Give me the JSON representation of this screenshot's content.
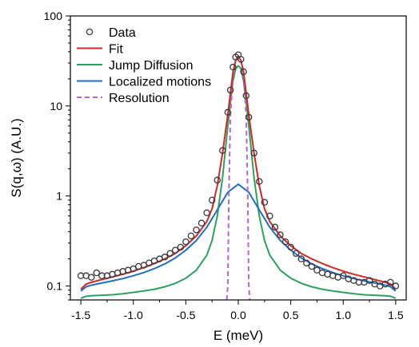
{
  "chart_data": {
    "type": "scatter",
    "xlabel": "E (meV)",
    "ylabel": "S(q,ω) (A.U.)",
    "xlim": [
      -1.6,
      1.6
    ],
    "ylim": [
      0.07,
      100
    ],
    "yscale": "log",
    "x_ticks": [
      -1.5,
      -1.0,
      -0.5,
      0.0,
      0.5,
      1.0,
      1.5
    ],
    "x_tick_labels": [
      "-1.5",
      "-1.0",
      "-0.5",
      "0.0",
      "0.5",
      "1.0",
      "1.5"
    ],
    "y_ticks": [
      0.1,
      1,
      10,
      100
    ],
    "y_tick_labels": [
      "0.1",
      "1",
      "10",
      "100"
    ],
    "grid": false,
    "legend_position": "top-left",
    "series": [
      {
        "name": "Data",
        "style": "open-circle",
        "color": "#3a3a3a",
        "x": [
          -1.5,
          -1.45,
          -1.4,
          -1.35,
          -1.3,
          -1.25,
          -1.2,
          -1.15,
          -1.1,
          -1.05,
          -1.0,
          -0.95,
          -0.9,
          -0.85,
          -0.8,
          -0.75,
          -0.7,
          -0.65,
          -0.6,
          -0.55,
          -0.5,
          -0.45,
          -0.4,
          -0.35,
          -0.3,
          -0.25,
          -0.2,
          -0.15,
          -0.1,
          -0.075,
          -0.05,
          -0.025,
          0.0,
          0.025,
          0.05,
          0.075,
          0.1,
          0.15,
          0.2,
          0.25,
          0.3,
          0.35,
          0.4,
          0.45,
          0.5,
          0.55,
          0.6,
          0.65,
          0.7,
          0.75,
          0.8,
          0.85,
          0.9,
          0.95,
          1.0,
          1.05,
          1.1,
          1.15,
          1.2,
          1.25,
          1.3,
          1.35,
          1.4,
          1.45,
          1.5
        ],
        "y": [
          0.13,
          0.13,
          0.125,
          0.14,
          0.13,
          0.13,
          0.135,
          0.14,
          0.145,
          0.15,
          0.155,
          0.165,
          0.17,
          0.18,
          0.19,
          0.2,
          0.21,
          0.23,
          0.25,
          0.27,
          0.31,
          0.36,
          0.42,
          0.5,
          0.65,
          0.9,
          1.5,
          3.2,
          8.5,
          15,
          27,
          35,
          37,
          33,
          24,
          13,
          7.5,
          3.0,
          1.45,
          0.85,
          0.6,
          0.45,
          0.37,
          0.31,
          0.27,
          0.23,
          0.2,
          0.18,
          0.165,
          0.15,
          0.14,
          0.135,
          0.13,
          0.125,
          0.13,
          0.12,
          0.115,
          0.11,
          0.11,
          0.115,
          0.105,
          0.1,
          0.105,
          0.11,
          0.1
        ]
      },
      {
        "name": "Fit",
        "style": "line",
        "color": "#d62728",
        "x": [
          -1.5,
          -1.45,
          -1.4,
          -1.3,
          -1.2,
          -1.1,
          -1.0,
          -0.9,
          -0.8,
          -0.7,
          -0.6,
          -0.5,
          -0.4,
          -0.3,
          -0.25,
          -0.2,
          -0.15,
          -0.1,
          -0.075,
          -0.05,
          -0.025,
          0.0,
          0.025,
          0.05,
          0.075,
          0.1,
          0.15,
          0.2,
          0.25,
          0.3,
          0.4,
          0.5,
          0.6,
          0.7,
          0.8,
          0.9,
          1.0,
          1.1,
          1.2,
          1.3,
          1.4,
          1.45,
          1.5
        ],
        "y": [
          0.092,
          0.105,
          0.11,
          0.118,
          0.126,
          0.135,
          0.146,
          0.16,
          0.178,
          0.2,
          0.23,
          0.28,
          0.36,
          0.52,
          0.72,
          1.3,
          3.0,
          8.0,
          14,
          24,
          32,
          36,
          32,
          24,
          14,
          8.0,
          3.0,
          1.3,
          0.72,
          0.52,
          0.36,
          0.28,
          0.23,
          0.2,
          0.178,
          0.16,
          0.146,
          0.135,
          0.126,
          0.118,
          0.11,
          0.105,
          0.092
        ]
      },
      {
        "name": "Jump Diffusion",
        "style": "line",
        "color": "#2ca25f",
        "x": [
          -1.5,
          -1.45,
          -1.4,
          -1.3,
          -1.2,
          -1.1,
          -1.0,
          -0.9,
          -0.8,
          -0.7,
          -0.6,
          -0.5,
          -0.4,
          -0.3,
          -0.25,
          -0.2,
          -0.15,
          -0.1,
          -0.075,
          -0.05,
          -0.025,
          0.0,
          0.025,
          0.05,
          0.075,
          0.1,
          0.15,
          0.2,
          0.25,
          0.3,
          0.4,
          0.5,
          0.6,
          0.7,
          0.8,
          0.9,
          1.0,
          1.1,
          1.2,
          1.3,
          1.4,
          1.45,
          1.5
        ],
        "y": [
          0.073,
          0.077,
          0.078,
          0.079,
          0.08,
          0.082,
          0.085,
          0.088,
          0.092,
          0.098,
          0.107,
          0.122,
          0.15,
          0.22,
          0.32,
          0.6,
          1.6,
          6.0,
          11,
          19,
          26,
          28,
          26,
          19,
          11,
          6.0,
          1.6,
          0.6,
          0.32,
          0.22,
          0.15,
          0.122,
          0.107,
          0.098,
          0.092,
          0.088,
          0.085,
          0.082,
          0.08,
          0.079,
          0.078,
          0.077,
          0.073
        ]
      },
      {
        "name": "Localized motions",
        "style": "line",
        "color": "#1f6fc5",
        "x": [
          -1.5,
          -1.45,
          -1.4,
          -1.3,
          -1.2,
          -1.1,
          -1.0,
          -0.9,
          -0.8,
          -0.7,
          -0.6,
          -0.5,
          -0.4,
          -0.3,
          -0.2,
          -0.1,
          0.0,
          0.1,
          0.2,
          0.3,
          0.4,
          0.5,
          0.6,
          0.7,
          0.8,
          0.9,
          1.0,
          1.1,
          1.2,
          1.3,
          1.4,
          1.45,
          1.5
        ],
        "y": [
          0.088,
          0.098,
          0.102,
          0.108,
          0.114,
          0.121,
          0.13,
          0.141,
          0.156,
          0.176,
          0.205,
          0.25,
          0.32,
          0.45,
          0.7,
          1.1,
          1.35,
          1.1,
          0.7,
          0.45,
          0.32,
          0.25,
          0.205,
          0.176,
          0.156,
          0.141,
          0.13,
          0.121,
          0.114,
          0.108,
          0.102,
          0.098,
          0.088
        ]
      },
      {
        "name": "Resolution",
        "style": "dashed-line",
        "color": "#b366d9",
        "x": [
          -0.11,
          -0.1,
          -0.09,
          -0.075,
          -0.05,
          -0.025,
          0.0,
          0.025,
          0.05,
          0.075,
          0.09,
          0.1,
          0.11
        ],
        "y": [
          0.07,
          0.1,
          1.0,
          8.0,
          22,
          32,
          35,
          32,
          22,
          8.0,
          1.0,
          0.1,
          0.07
        ]
      }
    ]
  }
}
